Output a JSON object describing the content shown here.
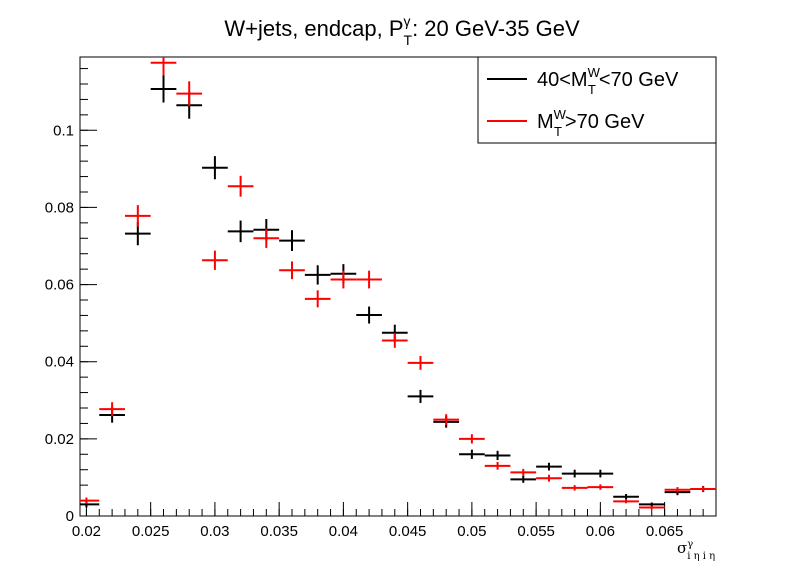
{
  "chart_data": {
    "type": "scatter",
    "title": {
      "main": "W+jets,  endcap,  P",
      "sup": "γ",
      "sub": "T",
      "rest": ": 20 GeV-35 GeV"
    },
    "xlabel": {
      "main": "σ",
      "sup": "γ",
      "sub": "i η i η"
    },
    "xlim": [
      0.0195,
      0.069
    ],
    "ylim": [
      0,
      0.119
    ],
    "x_ticks": [
      0.02,
      0.025,
      0.03,
      0.035,
      0.04,
      0.045,
      0.05,
      0.055,
      0.06,
      0.065
    ],
    "x_tick_labels": [
      "0.02",
      "0.025",
      "0.03",
      "0.035",
      "0.04",
      "0.045",
      "0.05",
      "0.055",
      "0.06",
      "0.065"
    ],
    "y_ticks": [
      0,
      0.02,
      0.04,
      0.06,
      0.08,
      0.1
    ],
    "y_tick_labels": [
      "0",
      "0.02",
      "0.04",
      "0.06",
      "0.08",
      "0.1"
    ],
    "bin_width": 0.002,
    "legend_position": "top-right",
    "series": [
      {
        "legend": {
          "pre": "40<M",
          "sup": "W",
          "sub": "T",
          "post": "<70 GeV"
        },
        "color": "#000000",
        "x": [
          0.02,
          0.022,
          0.024,
          0.026,
          0.028,
          0.03,
          0.032,
          0.034,
          0.036,
          0.038,
          0.04,
          0.042,
          0.044,
          0.046,
          0.048,
          0.05,
          0.052,
          0.054,
          0.056,
          0.058,
          0.06,
          0.062,
          0.064,
          0.066,
          0.068
        ],
        "y": [
          0.003,
          0.0262,
          0.0732,
          0.1107,
          0.1065,
          0.0903,
          0.0738,
          0.0742,
          0.0714,
          0.0625,
          0.0628,
          0.0521,
          0.0475,
          0.031,
          0.0244,
          0.016,
          0.0157,
          0.0095,
          0.0128,
          0.011,
          0.011,
          0.005,
          0.003,
          0.0062,
          0.007
        ],
        "yerr": [
          0.0008,
          0.002,
          0.003,
          0.0035,
          0.0035,
          0.003,
          0.0028,
          0.0028,
          0.0027,
          0.0025,
          0.0025,
          0.0022,
          0.0021,
          0.0017,
          0.0015,
          0.0012,
          0.0012,
          0.0009,
          0.001,
          0.001,
          0.001,
          0.0007,
          0.0005,
          0.0008,
          0.0008
        ]
      },
      {
        "legend": {
          "pre": "M",
          "sup": "W",
          "sub": "T",
          "post": ">70 GeV"
        },
        "color": "#ff0000",
        "x": [
          0.02,
          0.022,
          0.024,
          0.026,
          0.028,
          0.03,
          0.032,
          0.034,
          0.036,
          0.038,
          0.04,
          0.042,
          0.044,
          0.046,
          0.048,
          0.05,
          0.052,
          0.054,
          0.056,
          0.058,
          0.06,
          0.062,
          0.064,
          0.066,
          0.068
        ],
        "y": [
          0.004,
          0.0277,
          0.0778,
          0.1175,
          0.1095,
          0.0663,
          0.0855,
          0.072,
          0.0637,
          0.0563,
          0.0613,
          0.0613,
          0.0455,
          0.0397,
          0.025,
          0.02,
          0.013,
          0.0113,
          0.0098,
          0.0073,
          0.0075,
          0.0038,
          0.0022,
          0.0068,
          0.007
        ],
        "yerr": [
          0.0008,
          0.0018,
          0.0028,
          0.0033,
          0.0032,
          0.0025,
          0.0027,
          0.0025,
          0.0023,
          0.0022,
          0.0023,
          0.0023,
          0.0019,
          0.0018,
          0.0014,
          0.0012,
          0.001,
          0.0009,
          0.0009,
          0.0007,
          0.0007,
          0.0005,
          0.0004,
          0.0007,
          0.0007
        ]
      }
    ]
  }
}
